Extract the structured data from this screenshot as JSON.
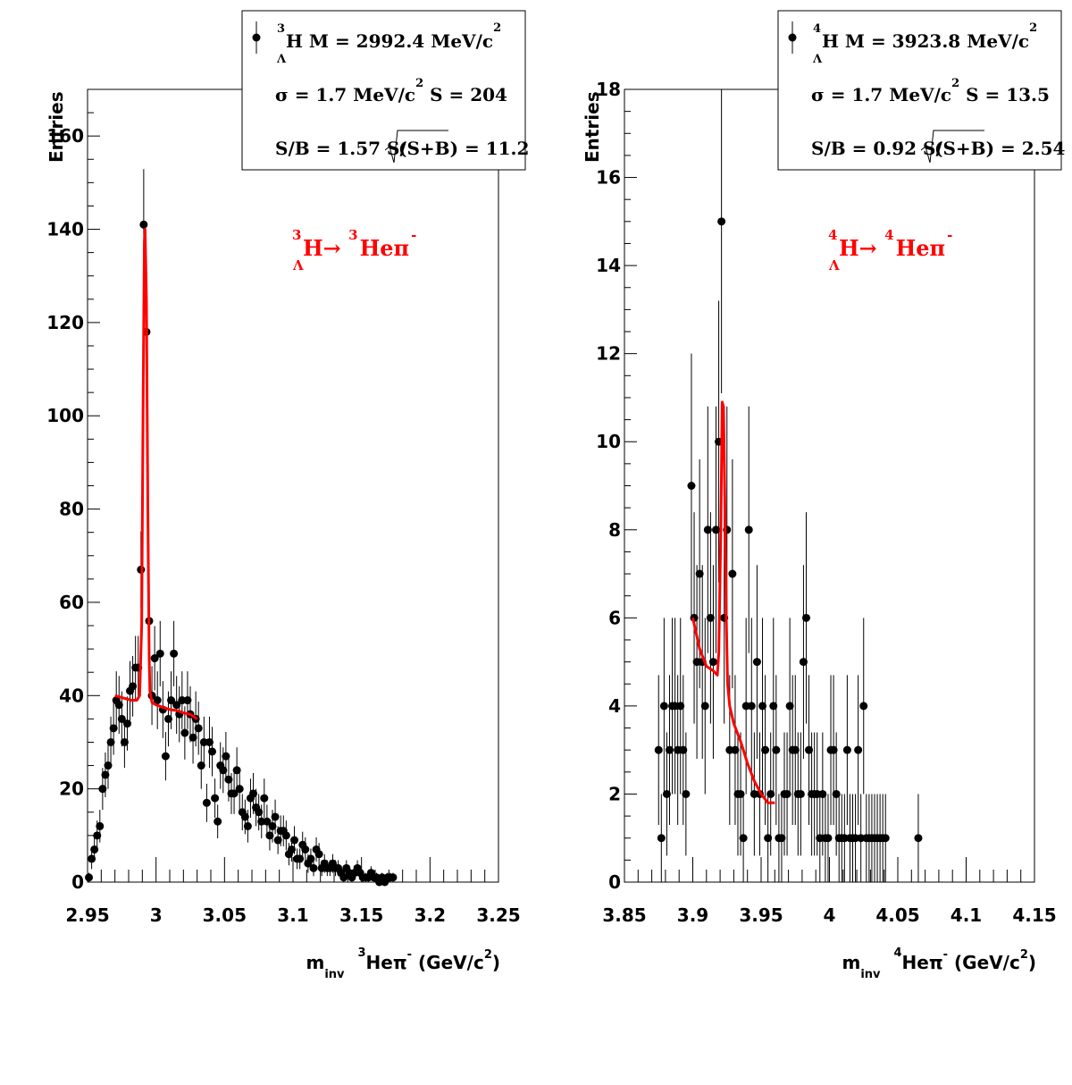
{
  "colors": {
    "marker": "#000000",
    "fit": "#ff0000",
    "frame": "#000000",
    "background": "#ffffff"
  },
  "chart_data": [
    {
      "type": "scatter",
      "ylabel": "Entries",
      "xlabel": {
        "prefix": "m",
        "prefix_sub": "inv",
        "nucleus_sup": "3",
        "body": "Heπ",
        "charge_sup": "-",
        "unit": " (GeV/c",
        "unit_sup": "2",
        "unit_close": ")"
      },
      "xlim": [
        2.95,
        3.25
      ],
      "ylim": [
        0,
        170
      ],
      "xticks": [
        2.95,
        3.0,
        3.05,
        3.1,
        3.15,
        3.2,
        3.25
      ],
      "xtick_labels": [
        "2.95",
        "3",
        "3.05",
        "3.1",
        "3.15",
        "3.2",
        "3.25"
      ],
      "yticks": [
        0,
        20,
        40,
        60,
        80,
        100,
        120,
        140,
        160
      ],
      "ytick_labels": [
        "0",
        "20",
        "40",
        "60",
        "80",
        "100",
        "120",
        "140",
        "160"
      ],
      "grid": false,
      "legend_position": "top-right",
      "stats": {
        "line1": {
          "sup": "3",
          "sub": "Λ",
          "text": "H M = 2992.4 MeV/c",
          "tail_sup": "2"
        },
        "line2": {
          "text": "σ = 1.7 MeV/c",
          "mid_sup": "2",
          "tail": " S =  204"
        },
        "line3": {
          "text": "S/B = 1.57  S/",
          "root": "(S+B)",
          "tail": " = 11.2"
        }
      },
      "decay": {
        "sup1": "3",
        "sub1": "Λ",
        "parent": "H→ ",
        "sup2": "3",
        "daughter": "Heπ",
        "charge": "-"
      },
      "series": [
        {
          "kind": "data",
          "x": [
            2.951,
            2.953,
            2.955,
            2.957,
            2.959,
            2.961,
            2.963,
            2.965,
            2.967,
            2.969,
            2.971,
            2.973,
            2.975,
            2.977,
            2.979,
            2.981,
            2.983,
            2.985,
            2.987,
            2.989,
            2.991,
            2.993,
            2.995,
            2.997,
            2.999,
            3.001,
            3.003,
            3.005,
            3.007,
            3.009,
            3.011,
            3.013,
            3.015,
            3.017,
            3.019,
            3.021,
            3.023,
            3.025,
            3.027,
            3.029,
            3.031,
            3.033,
            3.035,
            3.037,
            3.039,
            3.041,
            3.043,
            3.045,
            3.047,
            3.049,
            3.051,
            3.053,
            3.055,
            3.057,
            3.059,
            3.061,
            3.063,
            3.065,
            3.067,
            3.069,
            3.071,
            3.073,
            3.075,
            3.077,
            3.079,
            3.081,
            3.083,
            3.085,
            3.087,
            3.089,
            3.091,
            3.093,
            3.095,
            3.097,
            3.099,
            3.101,
            3.103,
            3.105,
            3.107,
            3.109,
            3.111,
            3.113,
            3.115,
            3.117,
            3.119,
            3.121,
            3.123,
            3.125,
            3.127,
            3.129,
            3.131,
            3.133,
            3.135,
            3.137,
            3.139,
            3.141,
            3.143,
            3.145,
            3.147,
            3.149,
            3.151,
            3.153,
            3.155,
            3.157,
            3.159,
            3.161,
            3.163,
            3.165,
            3.167,
            3.169,
            3.171,
            3.173
          ],
          "y": [
            1,
            5,
            7,
            10,
            12,
            20,
            23,
            25,
            30,
            33,
            39,
            38,
            35,
            30,
            34,
            41,
            42,
            46,
            46,
            67,
            141,
            118,
            56,
            40,
            48,
            39,
            49,
            37,
            27,
            35,
            39,
            49,
            38,
            36,
            39,
            32,
            39,
            36,
            31,
            35,
            33,
            25,
            30,
            17,
            30,
            28,
            18,
            13,
            25,
            24,
            27,
            22,
            19,
            19,
            24,
            20,
            15,
            14,
            12,
            18,
            19,
            16,
            15,
            13,
            18,
            13,
            10,
            12,
            14,
            9,
            11,
            11,
            10,
            6,
            7,
            9,
            5,
            5,
            8,
            7,
            4,
            5,
            3,
            7,
            6,
            3,
            4,
            3,
            3,
            4,
            3,
            3,
            2,
            1,
            3,
            2,
            1,
            2,
            3,
            2,
            1,
            1,
            1,
            2,
            1,
            1,
            0,
            1,
            0,
            1,
            1,
            1
          ],
          "yerr": [
            1,
            2.2,
            2.6,
            3.2,
            3.5,
            4.5,
            4.8,
            5,
            5.5,
            5.7,
            6.2,
            6.2,
            5.9,
            5.5,
            5.8,
            6.4,
            6.5,
            6.8,
            6.8,
            8.2,
            11.9,
            10.9,
            7.5,
            6.3,
            6.9,
            6.2,
            7,
            6.1,
            5.2,
            5.9,
            6.2,
            7,
            6.2,
            6,
            6.2,
            5.7,
            6.2,
            6,
            5.6,
            5.9,
            5.7,
            5,
            5.5,
            4.1,
            5.5,
            5.3,
            4.2,
            3.6,
            5,
            4.9,
            5.2,
            4.7,
            4.4,
            4.4,
            4.9,
            4.5,
            3.9,
            3.7,
            3.5,
            4.2,
            4.4,
            4,
            3.9,
            3.6,
            4.2,
            3.6,
            3.2,
            3.5,
            3.7,
            3,
            3.3,
            3.3,
            3.2,
            2.4,
            2.6,
            3,
            2.2,
            2.2,
            2.8,
            2.6,
            2,
            2.2,
            1.7,
            2.6,
            2.4,
            1.7,
            2,
            1.7,
            1.7,
            2,
            1.7,
            1.7,
            1.4,
            1,
            1.7,
            1.4,
            1,
            1.4,
            1.7,
            1.4,
            1,
            1,
            1,
            1.4,
            1,
            1,
            0,
            1,
            0,
            1,
            1,
            1
          ]
        },
        {
          "kind": "fit",
          "x": [
            2.97,
            2.976,
            2.982,
            2.986,
            2.988,
            2.9895,
            2.9905,
            2.9915,
            2.992,
            2.993,
            2.994,
            2.995,
            2.9955,
            2.997,
            3.0,
            3.005,
            3.01,
            3.015,
            3.02,
            3.025,
            3.03
          ],
          "y": [
            40,
            39.5,
            39,
            39,
            40,
            55,
            100,
            137,
            140,
            125,
            80,
            48,
            41,
            38.5,
            38,
            37.5,
            37,
            36.8,
            36.3,
            36,
            35
          ]
        }
      ]
    },
    {
      "type": "scatter",
      "ylabel": "Entries",
      "xlabel": {
        "prefix": "m",
        "prefix_sub": "inv",
        "nucleus_sup": "4",
        "body": "Heπ",
        "charge_sup": "-",
        "unit": "  (GeV/c",
        "unit_sup": "2",
        "unit_close": ")"
      },
      "xlim": [
        3.85,
        4.15
      ],
      "ylim": [
        0,
        18
      ],
      "xticks": [
        3.85,
        3.9,
        3.95,
        4.0,
        4.05,
        4.1,
        4.15
      ],
      "xtick_labels": [
        "3.85",
        "3.9",
        "3.95",
        "4",
        "4.05",
        "4.1",
        "4.15"
      ],
      "yticks": [
        0,
        2,
        4,
        6,
        8,
        10,
        12,
        14,
        16,
        18
      ],
      "ytick_labels": [
        "0",
        "2",
        "4",
        "6",
        "8",
        "10",
        "12",
        "14",
        "16",
        "18"
      ],
      "grid": false,
      "legend_position": "top-right",
      "stats": {
        "line1": {
          "sup": "4",
          "sub": "Λ",
          "text": "H M = 3923.8 MeV/c",
          "tail_sup": "2"
        },
        "line2": {
          "text": "σ = 1.7 MeV/c",
          "mid_sup": "2",
          "tail": " S = 13.5"
        },
        "line3": {
          "text": "S/B = 0.92  S/",
          "root": "(S+B)",
          "tail": " = 2.54"
        }
      },
      "decay": {
        "sup1": "4",
        "sub1": "Λ",
        "parent": "H→ ",
        "sup2": "4",
        "daughter": "Heπ",
        "charge": "-"
      },
      "series": [
        {
          "kind": "data",
          "x": [
            3.875,
            3.877,
            3.879,
            3.881,
            3.883,
            3.885,
            3.887,
            3.889,
            3.891,
            3.893,
            3.895,
            3.899,
            3.901,
            3.903,
            3.905,
            3.907,
            3.909,
            3.911,
            3.913,
            3.915,
            3.917,
            3.919,
            3.921,
            3.923,
            3.925,
            3.927,
            3.929,
            3.931,
            3.933,
            3.935,
            3.937,
            3.939,
            3.941,
            3.943,
            3.945,
            3.947,
            3.949,
            3.951,
            3.953,
            3.955,
            3.957,
            3.959,
            3.961,
            3.963,
            3.965,
            3.967,
            3.969,
            3.971,
            3.973,
            3.975,
            3.977,
            3.979,
            3.981,
            3.983,
            3.985,
            3.987,
            3.989,
            3.991,
            3.993,
            3.995,
            3.997,
            3.999,
            4.001,
            4.003,
            4.005,
            4.007,
            4.009,
            4.011,
            4.013,
            4.015,
            4.017,
            4.019,
            4.021,
            4.023,
            4.025,
            4.027,
            4.029,
            4.031,
            4.033,
            4.035,
            4.037,
            4.039,
            4.041,
            4.065
          ],
          "y": [
            3,
            1,
            4,
            2,
            3,
            4,
            4,
            3,
            4,
            3,
            2,
            9,
            6,
            5,
            7,
            5,
            4,
            8,
            6,
            5,
            8,
            10,
            15,
            6,
            8,
            3,
            7,
            3,
            2,
            2,
            1,
            4,
            8,
            4,
            2,
            5,
            2,
            4,
            3,
            1,
            2,
            4,
            3,
            1,
            1,
            2,
            2,
            4,
            3,
            3,
            2,
            2,
            5,
            6,
            3,
            2,
            2,
            2,
            1,
            2,
            1,
            1,
            3,
            3,
            2,
            1,
            1,
            1,
            3,
            1,
            1,
            1,
            3,
            1,
            4,
            1,
            1,
            1,
            1,
            1,
            1,
            1,
            1,
            1
          ],
          "yerr": [
            1.7,
            1,
            2,
            1.4,
            1.7,
            2,
            2,
            1.7,
            2,
            1.7,
            1.4,
            3,
            2.4,
            2.2,
            2.6,
            2.2,
            2,
            2.8,
            2.4,
            2.2,
            2.8,
            3.2,
            3.9,
            2.4,
            2.8,
            1.7,
            2.6,
            1.7,
            1.4,
            1.4,
            1,
            2,
            2.8,
            2,
            1.4,
            2.2,
            1.4,
            2,
            1.7,
            1,
            1.4,
            2,
            1.7,
            1,
            1,
            1.4,
            1.4,
            2,
            1.7,
            1.7,
            1.4,
            1.4,
            2.2,
            2.4,
            1.7,
            1.4,
            1.4,
            1.4,
            1,
            1.4,
            1,
            1,
            1.7,
            1.7,
            1.4,
            1,
            1,
            1,
            1.7,
            1,
            1,
            1,
            1.7,
            1,
            2,
            1,
            1,
            1,
            1,
            1,
            1,
            1,
            1,
            1
          ]
        },
        {
          "kind": "fit",
          "x": [
            3.9,
            3.905,
            3.91,
            3.915,
            3.918,
            3.919,
            3.9205,
            3.9215,
            3.9225,
            3.9235,
            3.9245,
            3.9255,
            3.927,
            3.93,
            3.935,
            3.94,
            3.945,
            3.95,
            3.955,
            3.96
          ],
          "y": [
            6,
            5.3,
            4.9,
            4.8,
            4.7,
            5.2,
            8,
            10.9,
            10.8,
            8.5,
            6,
            4.5,
            4,
            3.6,
            3.2,
            2.7,
            2.3,
            2,
            1.8,
            1.8
          ]
        }
      ]
    }
  ]
}
